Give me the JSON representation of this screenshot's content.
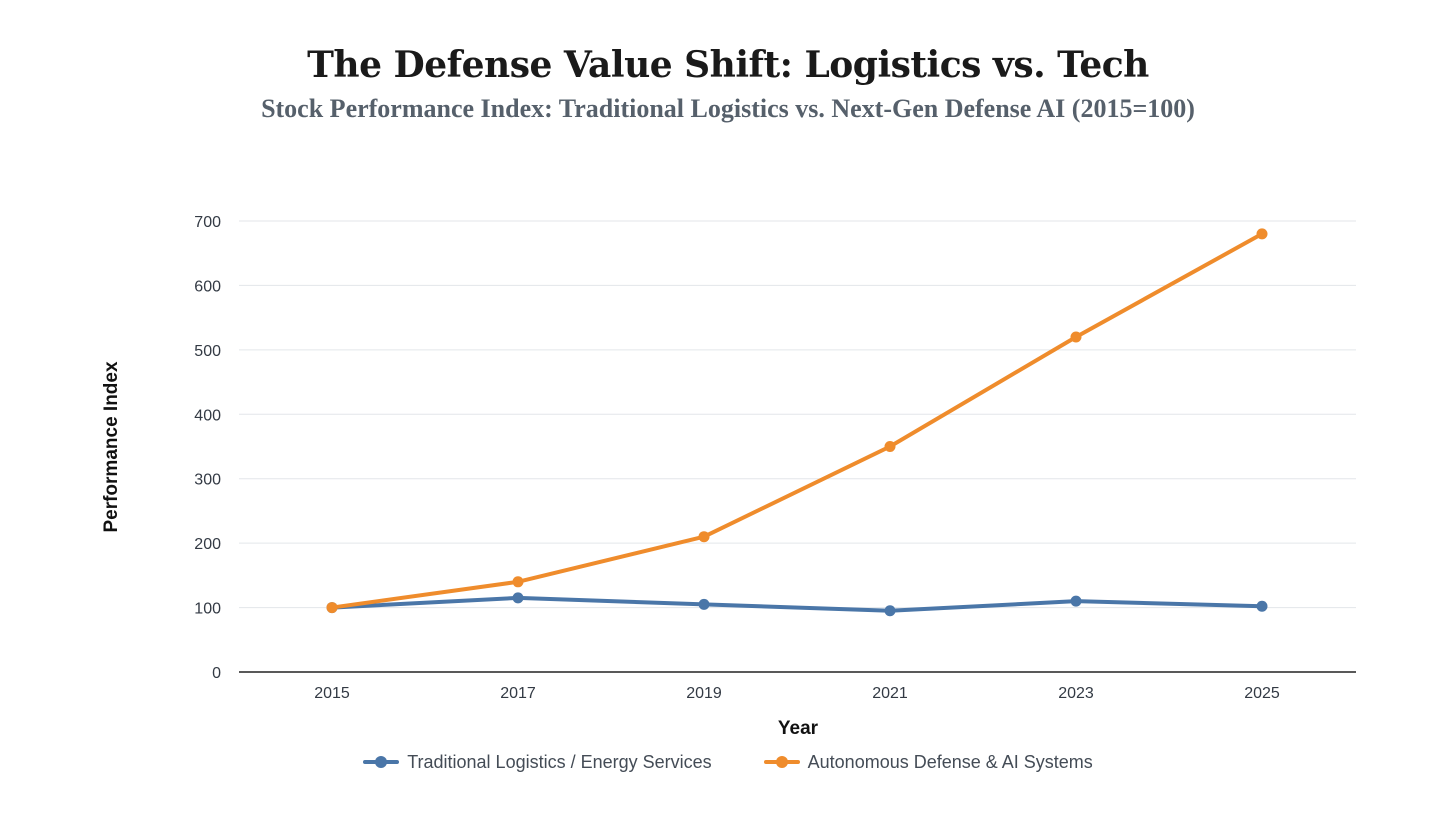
{
  "chart_data": {
    "type": "line",
    "title": "The Defense Value Shift: Logistics vs. Tech",
    "subtitle": "Stock Performance Index: Traditional Logistics vs. Next-Gen Defense AI (2015=100)",
    "xlabel": "Year",
    "ylabel": "Performance Index",
    "categories": [
      "2015",
      "2017",
      "2019",
      "2021",
      "2023",
      "2025"
    ],
    "ylim": [
      0,
      700
    ],
    "yticks": [
      0,
      100,
      200,
      300,
      400,
      500,
      600,
      700
    ],
    "grid": true,
    "legend_position": "bottom-center",
    "series": [
      {
        "name": "Traditional Logistics / Energy Services",
        "color": "#4a76a8",
        "values": [
          100,
          115,
          105,
          95,
          110,
          102
        ]
      },
      {
        "name": "Autonomous Defense & AI Systems",
        "color": "#ef8c2c",
        "values": [
          100,
          140,
          210,
          350,
          520,
          680
        ]
      }
    ]
  }
}
